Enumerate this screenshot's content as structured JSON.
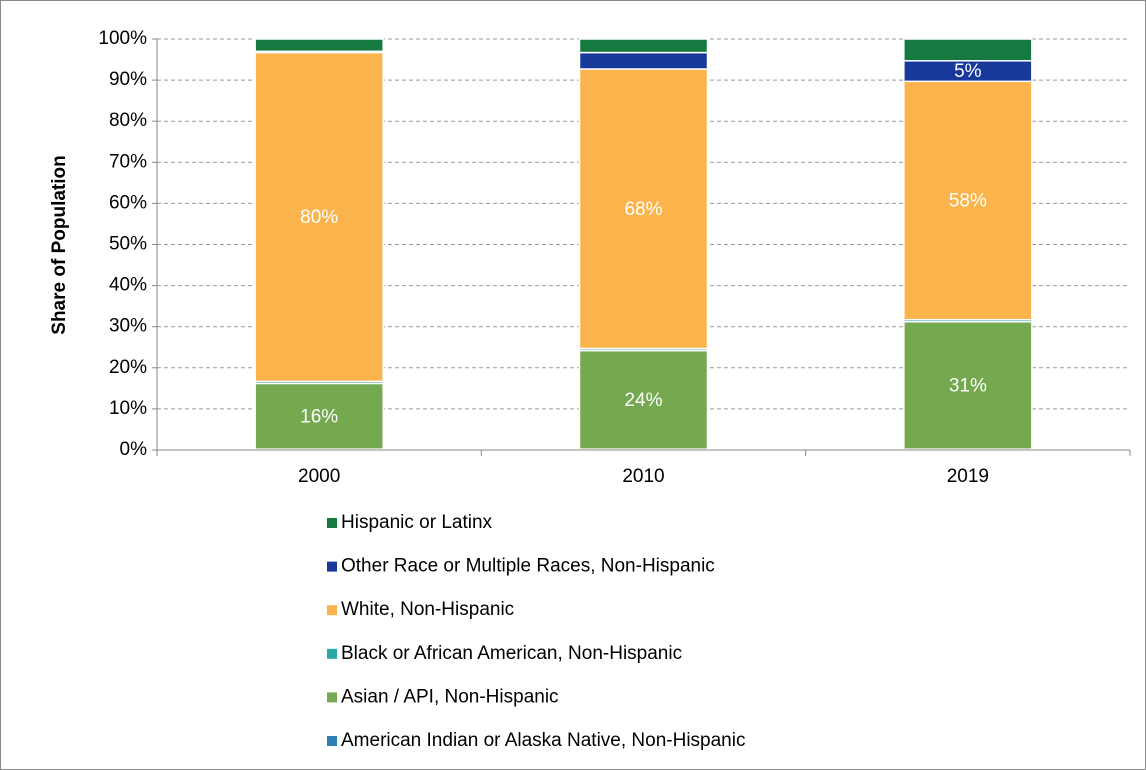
{
  "chart_data": {
    "type": "stacked_bar",
    "ylabel": "Share of Population",
    "categories": [
      "2000",
      "2010",
      "2019"
    ],
    "series": [
      {
        "name": "American Indian or Alaska Native, Non-Hispanic",
        "color": "#2e7fb8",
        "values": [
          0.2,
          0.2,
          0.2
        ]
      },
      {
        "name": "Asian / API, Non-Hispanic",
        "color": "#74a94f",
        "values": [
          16,
          24,
          31
        ],
        "value_labels": [
          "16%",
          "24%",
          "31%"
        ]
      },
      {
        "name": "Black or African American, Non-Hispanic",
        "color": "#2aa7a7",
        "values": [
          0.5,
          0.5,
          0.5
        ]
      },
      {
        "name": "White, Non-Hispanic",
        "color": "#fbb44b",
        "values": [
          80,
          68,
          58
        ],
        "value_labels": [
          "80%",
          "68%",
          "58%"
        ]
      },
      {
        "name": "Other Race or Multiple Races, Non-Hispanic",
        "color": "#18389a",
        "values": [
          0.3,
          4,
          5
        ],
        "value_labels": [
          null,
          null,
          "5%"
        ]
      },
      {
        "name": "Hispanic or Latinx",
        "color": "#147a40",
        "values": [
          3,
          3.3,
          5.3
        ]
      }
    ],
    "ylim": [
      0,
      100
    ],
    "yticks": [
      {
        "value": 0,
        "label": "0%"
      },
      {
        "value": 10,
        "label": "10%"
      },
      {
        "value": 20,
        "label": "20%"
      },
      {
        "value": 30,
        "label": "30%"
      },
      {
        "value": 40,
        "label": "40%"
      },
      {
        "value": 50,
        "label": "50%"
      },
      {
        "value": 60,
        "label": "60%"
      },
      {
        "value": 70,
        "label": "70%"
      },
      {
        "value": 80,
        "label": "80%"
      },
      {
        "value": 90,
        "label": "90%"
      },
      {
        "value": 100,
        "label": "100%"
      }
    ],
    "grid": true
  }
}
